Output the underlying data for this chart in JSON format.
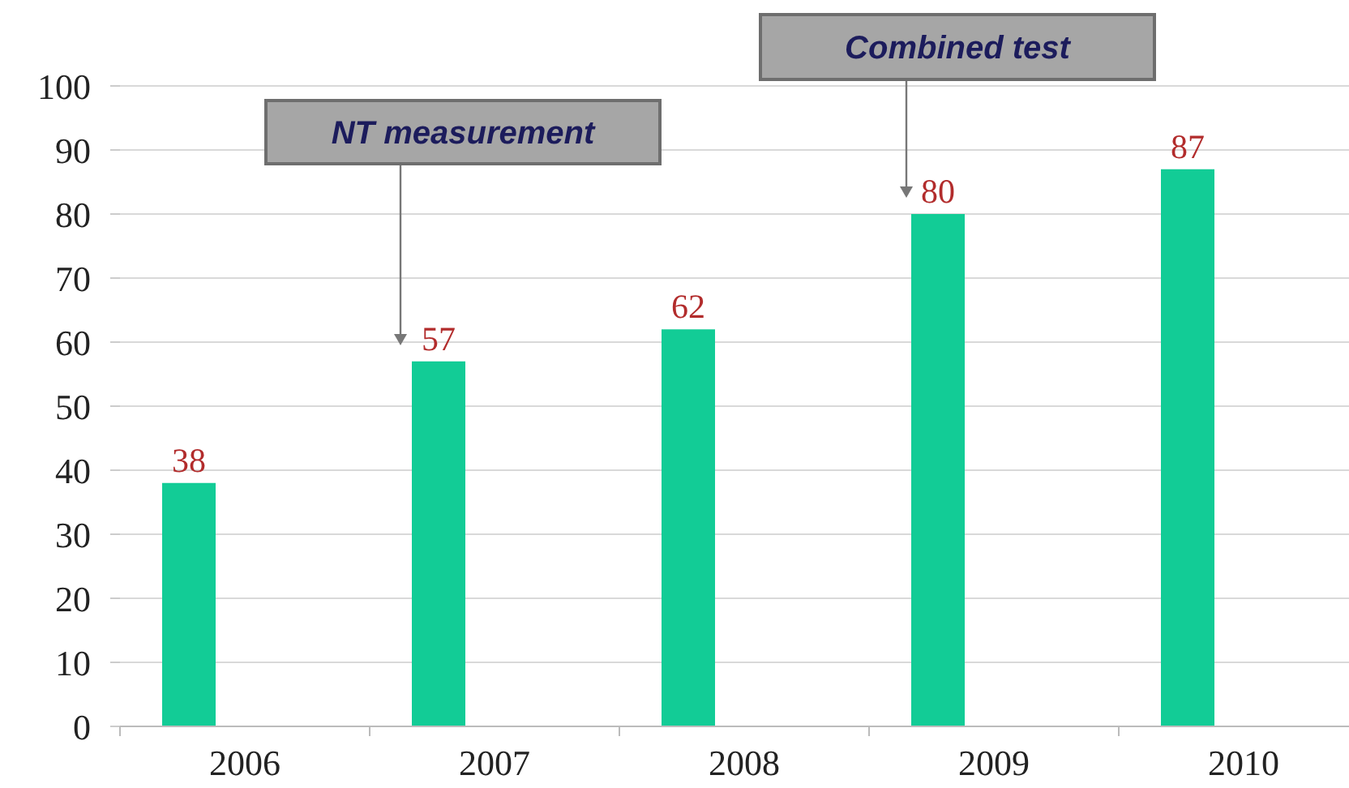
{
  "chart_data": {
    "type": "bar",
    "categories": [
      "2006",
      "2007",
      "2008",
      "2009",
      "2010"
    ],
    "values": [
      38,
      57,
      62,
      80,
      87
    ],
    "color": "#12cc96",
    "ylim": [
      0,
      100
    ],
    "yticks": [
      0,
      10,
      20,
      30,
      40,
      50,
      60,
      70,
      80,
      90,
      100
    ],
    "grid": "y",
    "data_labels": true,
    "annotations": [
      "NT measurement",
      "Combined test"
    ]
  }
}
